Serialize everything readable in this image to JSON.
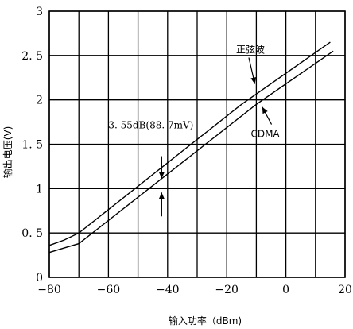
{
  "chart_data": {
    "type": "line",
    "xlabel": "输入功率（dBm)",
    "ylabel": "输出电压(V)",
    "xlim": [
      -80,
      20
    ],
    "ylim": [
      0,
      3
    ],
    "x_ticks": [
      -80,
      -70,
      -60,
      -50,
      -40,
      -30,
      -20,
      -10,
      0,
      10,
      20
    ],
    "x_tick_labels": [
      "−80",
      "",
      "−60",
      "",
      "−40",
      "",
      "−20",
      "",
      "0",
      "",
      "20"
    ],
    "y_ticks": [
      0,
      0.5,
      1,
      1.5,
      2,
      2.5,
      3
    ],
    "y_tick_labels": [
      "0",
      "0. 5",
      "1",
      "1. 5",
      "2",
      "2. 5",
      "3"
    ],
    "grid": true,
    "series": [
      {
        "name": "正弦波",
        "x": [
          -80,
          -75,
          -70,
          -15,
          15
        ],
        "y": [
          0.36,
          0.42,
          0.5,
          1.95,
          2.65
        ]
      },
      {
        "name": "CDMA",
        "x": [
          -80,
          -75,
          -70,
          -10,
          16
        ],
        "y": [
          0.28,
          0.33,
          0.38,
          1.95,
          2.55
        ]
      }
    ],
    "annotations": [
      {
        "text": "正弦波",
        "x": -12,
        "y": 2.53,
        "arrow_to": [
          -10.5,
          2.18
        ]
      },
      {
        "text": "CDMA",
        "x": -7,
        "y": 1.58,
        "arrow_to": [
          -8,
          1.92
        ]
      },
      {
        "text": "3. 55dB(88. 7mV)",
        "x": -60,
        "y": 1.68,
        "arrow_at_x": -42
      }
    ]
  }
}
